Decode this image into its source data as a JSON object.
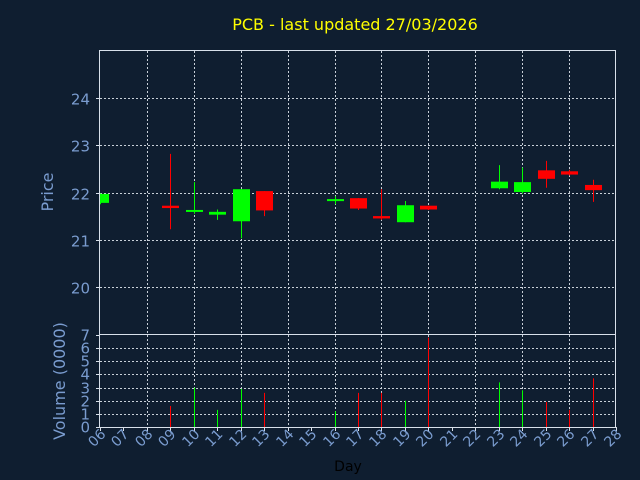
{
  "chart_data": [
    {
      "type": "candlestick",
      "title": "PCB - last updated 27/03/2026",
      "ylabel": "Price",
      "ylim": [
        19,
        25
      ],
      "yticks": [
        "20",
        "21",
        "22",
        "23",
        "24"
      ],
      "grid": true,
      "up_color": "#00ff00",
      "down_color": "#ff0000",
      "x": [
        "06",
        "07",
        "08",
        "09",
        "10",
        "11",
        "12",
        "13",
        "14",
        "15",
        "16",
        "17",
        "18",
        "19",
        "20",
        "21",
        "22",
        "23",
        "24",
        "25",
        "26",
        "27",
        "28"
      ],
      "candles": [
        {
          "day": "06",
          "open": 21.78,
          "high": 21.98,
          "low": 21.75,
          "close": 21.97
        },
        {
          "day": "09",
          "open": 21.72,
          "high": 22.82,
          "low": 21.22,
          "close": 21.67
        },
        {
          "day": "10",
          "open": 21.6,
          "high": 22.22,
          "low": 21.55,
          "close": 21.63
        },
        {
          "day": "11",
          "open": 21.53,
          "high": 21.64,
          "low": 21.42,
          "close": 21.59
        },
        {
          "day": "12",
          "open": 21.39,
          "high": 22.07,
          "low": 21.03,
          "close": 22.07
        },
        {
          "day": "13",
          "open": 22.03,
          "high": 22.03,
          "low": 21.5,
          "close": 21.62
        },
        {
          "day": "16",
          "open": 21.82,
          "high": 21.92,
          "low": 21.75,
          "close": 21.86
        },
        {
          "day": "17",
          "open": 21.88,
          "high": 21.88,
          "low": 21.63,
          "close": 21.66
        },
        {
          "day": "18",
          "open": 21.5,
          "high": 22.07,
          "low": 21.42,
          "close": 21.45
        },
        {
          "day": "19",
          "open": 21.37,
          "high": 21.82,
          "low": 21.37,
          "close": 21.73
        },
        {
          "day": "20",
          "open": 21.72,
          "high": 21.72,
          "low": 21.63,
          "close": 21.64
        },
        {
          "day": "23",
          "open": 22.09,
          "high": 22.58,
          "low": 22.07,
          "close": 22.23
        },
        {
          "day": "24",
          "open": 22.01,
          "high": 22.53,
          "low": 21.98,
          "close": 22.22
        },
        {
          "day": "25",
          "open": 22.47,
          "high": 22.67,
          "low": 22.1,
          "close": 22.29
        },
        {
          "day": "26",
          "open": 22.45,
          "high": 22.48,
          "low": 22.36,
          "close": 22.38
        },
        {
          "day": "27",
          "open": 22.16,
          "high": 22.27,
          "low": 21.8,
          "close": 22.05
        }
      ]
    },
    {
      "type": "bar",
      "ylabel": "Volume (0000)",
      "xlabel": "Day",
      "ylim": [
        0,
        7
      ],
      "yticks": [
        "0",
        "1",
        "2",
        "3",
        "4",
        "5",
        "6",
        "7"
      ],
      "grid": true,
      "x": [
        "06",
        "07",
        "08",
        "09",
        "10",
        "11",
        "12",
        "13",
        "14",
        "15",
        "16",
        "17",
        "18",
        "19",
        "20",
        "21",
        "22",
        "23",
        "24",
        "25",
        "26",
        "27",
        "28"
      ],
      "bars": [
        {
          "day": "09",
          "value": 1.6,
          "color": "#ff0000"
        },
        {
          "day": "10",
          "value": 3.0,
          "color": "#00ff00"
        },
        {
          "day": "11",
          "value": 1.3,
          "color": "#00ff00"
        },
        {
          "day": "12",
          "value": 2.9,
          "color": "#00ff00"
        },
        {
          "day": "13",
          "value": 2.6,
          "color": "#ff0000"
        },
        {
          "day": "16",
          "value": 1.2,
          "color": "#00ff00"
        },
        {
          "day": "17",
          "value": 2.6,
          "color": "#ff0000"
        },
        {
          "day": "18",
          "value": 2.6,
          "color": "#ff0000"
        },
        {
          "day": "19",
          "value": 2.0,
          "color": "#00ff00"
        },
        {
          "day": "20",
          "value": 6.8,
          "color": "#ff0000"
        },
        {
          "day": "23",
          "value": 3.4,
          "color": "#00ff00"
        },
        {
          "day": "24",
          "value": 2.8,
          "color": "#00ff00"
        },
        {
          "day": "25",
          "value": 1.9,
          "color": "#ff0000"
        },
        {
          "day": "26",
          "value": 1.3,
          "color": "#ff0000"
        },
        {
          "day": "27",
          "value": 3.7,
          "color": "#ff0000"
        }
      ]
    }
  ]
}
